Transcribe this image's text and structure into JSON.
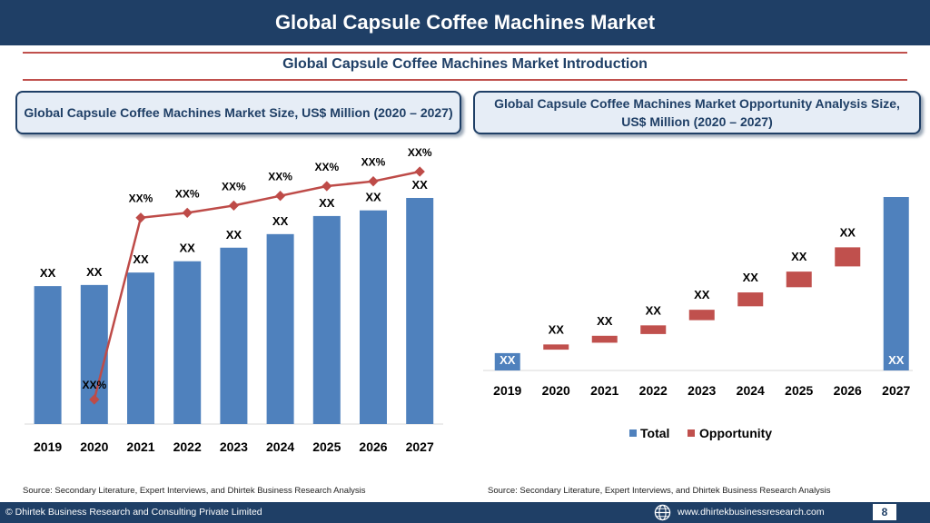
{
  "header": {
    "title": "Global Capsule Coffee Machines Market"
  },
  "subtitle": "Global Capsule Coffee Machines Market  Introduction",
  "left_panel": {
    "heading": "Global Capsule Coffee Machines Market  Size, US$ Million (2020 – 2027)",
    "source": "Source: Secondary Literature, Expert Interviews, and Dhirtek Business Research Analysis"
  },
  "right_panel": {
    "heading": "Global Capsule Coffee Machines Market  Opportunity Analysis Size, US$ Million (2020 – 2027)",
    "source": "Source: Secondary Literature, Expert Interviews, and Dhirtek Business Research Analysis"
  },
  "footer": {
    "copyright": "© Dhirtek Business Research and Consulting Private Limited",
    "website": "www.dhirtekbusinessresearch.com",
    "page": "8"
  },
  "colors": {
    "navy": "#1f3f66",
    "bar_blue": "#4f81bd",
    "red": "#c0504d",
    "red_line": "#be4b48"
  },
  "chart_data": [
    {
      "type": "bar",
      "categories": [
        "2019",
        "2020",
        "2021",
        "2022",
        "2023",
        "2024",
        "2025",
        "2026",
        "2027"
      ],
      "values": [
        61,
        61.5,
        67,
        72,
        78,
        84,
        92,
        94.5,
        100
      ],
      "data_labels": [
        "XX",
        "XX",
        "XX",
        "XX",
        "XX",
        "XX",
        "XX",
        "XX",
        "XX"
      ],
      "ylim": [
        0,
        100
      ],
      "line_series": {
        "values": [
          -25,
          50,
          52,
          55,
          59,
          63,
          65,
          69
        ],
        "start_index": 1,
        "labels": [
          "XX%",
          "XX%",
          "XX%",
          "XX%",
          "XX%",
          "XX%",
          "XX%",
          "XX%"
        ]
      }
    },
    {
      "type": "bar",
      "categories": [
        "2019",
        "2020",
        "2021",
        "2022",
        "2023",
        "2024",
        "2025",
        "2026",
        "2027"
      ],
      "series": [
        {
          "name": "Total",
          "values": [
            10,
            null,
            null,
            null,
            null,
            null,
            null,
            null,
            100
          ]
        },
        {
          "name": "Opportunity",
          "ranges": [
            null,
            [
              12,
              15
            ],
            [
              16,
              20
            ],
            [
              21,
              26
            ],
            [
              29,
              35
            ],
            [
              37,
              45
            ],
            [
              48,
              57
            ],
            [
              60,
              71
            ],
            null
          ]
        }
      ],
      "data_labels": [
        "XX",
        "XX",
        "XX",
        "XX",
        "XX",
        "XX",
        "XX",
        "XX",
        "XX"
      ],
      "ylim": [
        0,
        100
      ],
      "legend": "bottom"
    }
  ]
}
